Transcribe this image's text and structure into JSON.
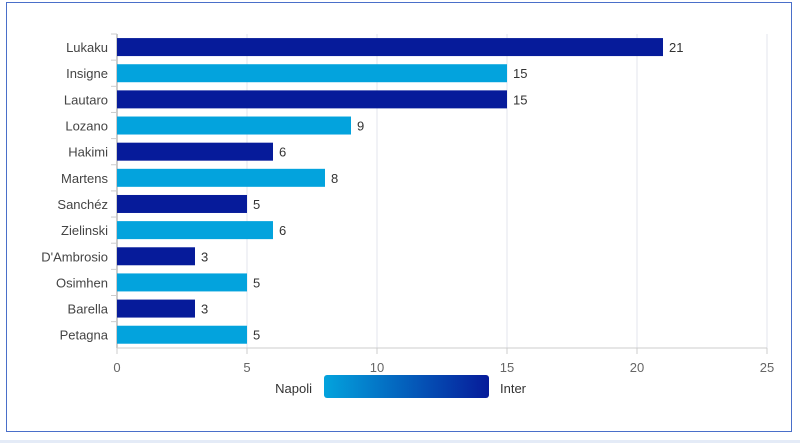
{
  "chart_data": {
    "type": "bar",
    "orientation": "horizontal",
    "categories": [
      "Lukaku",
      "Insigne",
      "Lautaro",
      "Lozano",
      "Hakimi",
      "Martens",
      "Sanchéz",
      "Zielinski",
      "D'Ambrosio",
      "Osimhen",
      "Barella",
      "Petagna"
    ],
    "values": [
      21,
      15,
      15,
      9,
      6,
      8,
      5,
      6,
      3,
      5,
      3,
      5
    ],
    "teams": [
      "Inter",
      "Napoli",
      "Inter",
      "Napoli",
      "Inter",
      "Napoli",
      "Inter",
      "Napoli",
      "Inter",
      "Napoli",
      "Inter",
      "Napoli"
    ],
    "xlim": [
      0,
      25
    ],
    "xticks": [
      0,
      5,
      10,
      15,
      20,
      25
    ],
    "grid": true,
    "legend": {
      "placement": "bottom",
      "type": "gradient",
      "low_label": "Napoli",
      "high_label": "Inter",
      "low_color": "#03a3dd",
      "high_color": "#061b9a"
    },
    "colors": {
      "Napoli": "#03a3dd",
      "Inter": "#061b9a"
    }
  }
}
